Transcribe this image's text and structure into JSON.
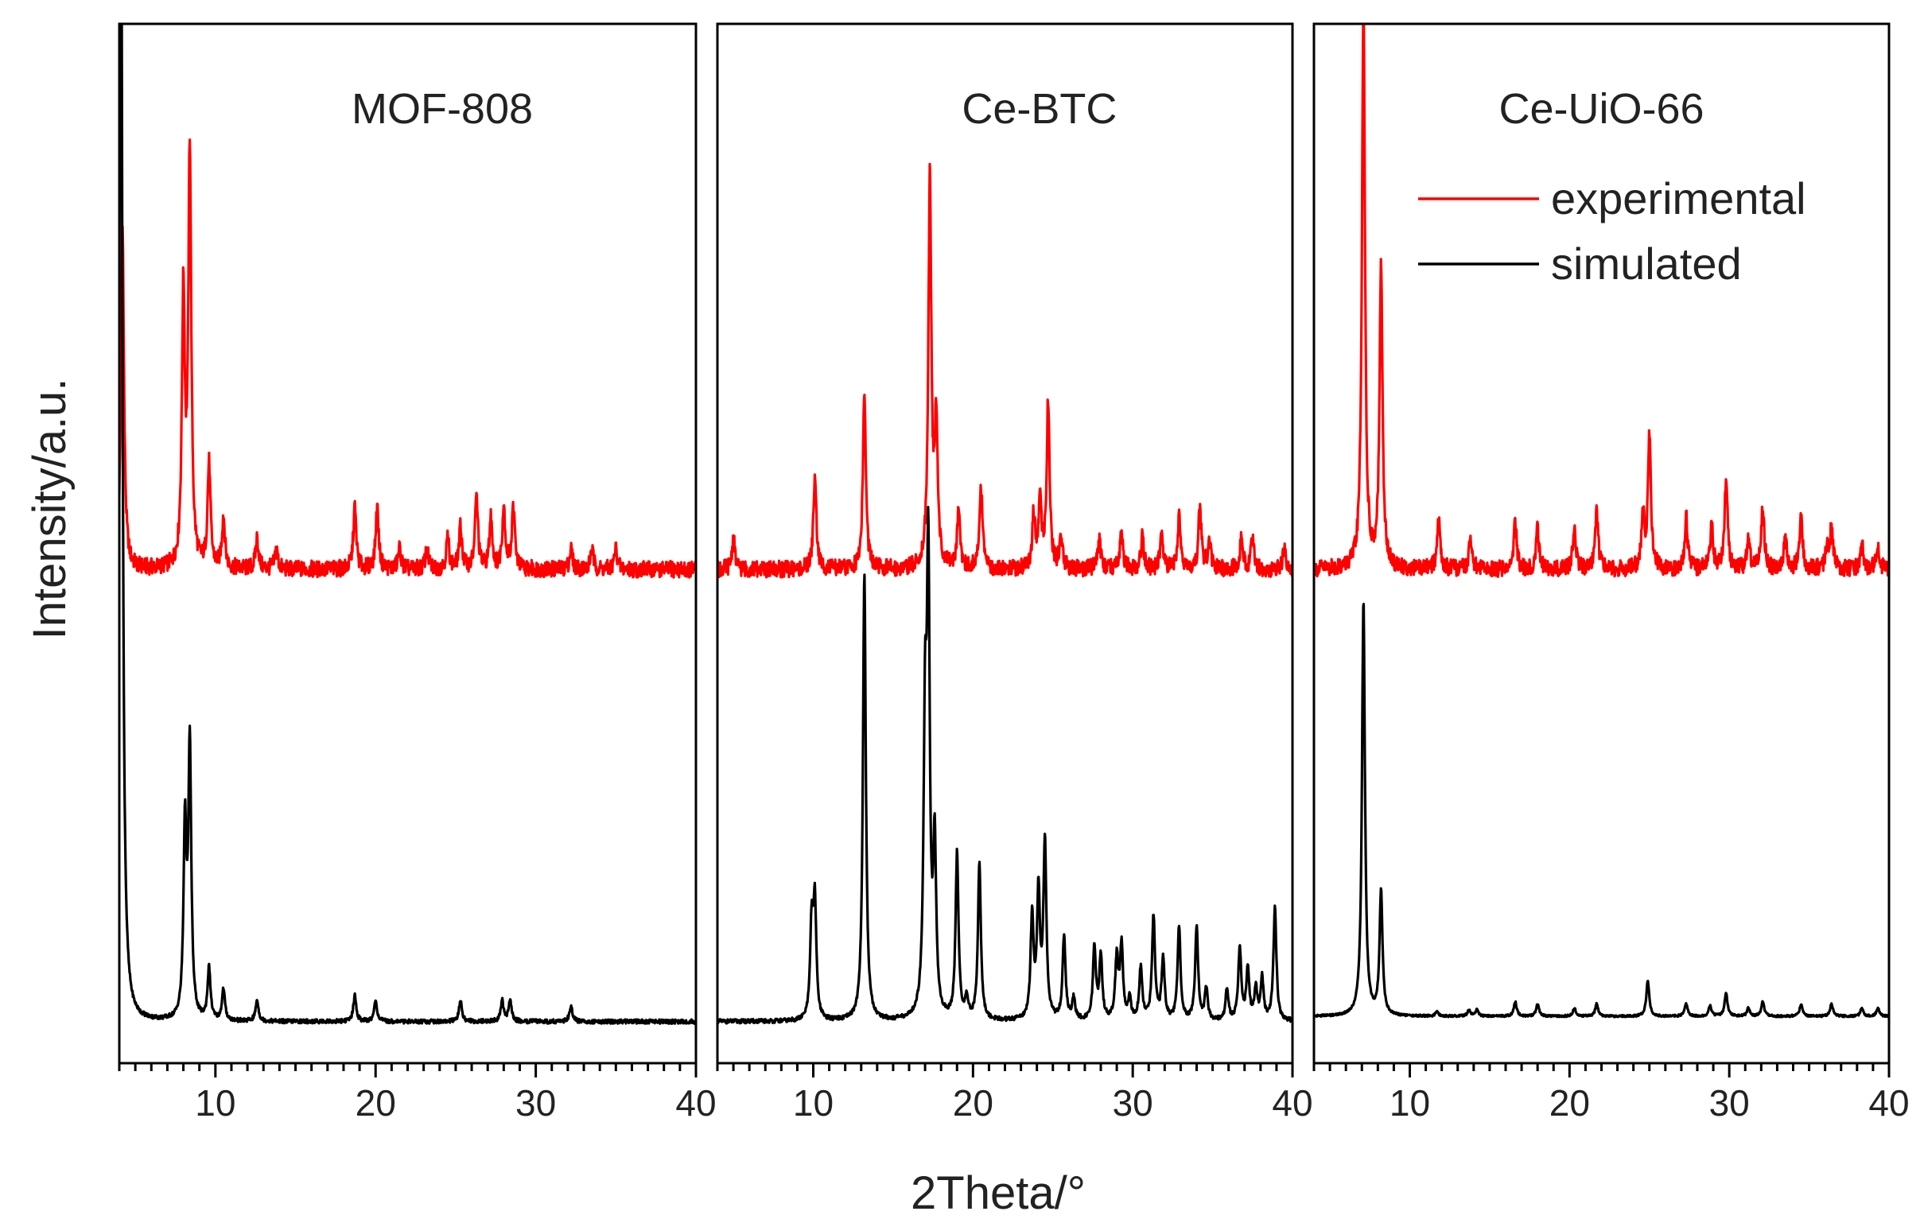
{
  "figure": {
    "xlabel": "2Theta/°",
    "ylabel": "Intensity/a.u.",
    "legend": {
      "placement": "top-right of third panel",
      "entries": [
        {
          "label": "experimental",
          "color": "#ff0000"
        },
        {
          "label": "simulated",
          "color": "#000000"
        }
      ]
    }
  },
  "chart_data": [
    {
      "type": "line",
      "title": "MOF-808",
      "xlim": [
        4,
        40
      ],
      "ylim": [
        0,
        1
      ],
      "xticks": [
        10,
        20,
        30,
        40
      ],
      "grid": false,
      "series": [
        {
          "name": "experimental",
          "color": "#ff0000",
          "baseline": 0.475,
          "peaks": [
            [
              4.2,
              0.33
            ],
            [
              8.0,
              0.26
            ],
            [
              8.4,
              0.4
            ],
            [
              9.6,
              0.1
            ],
            [
              10.5,
              0.05
            ],
            [
              12.6,
              0.03
            ],
            [
              13.8,
              0.02
            ],
            [
              18.7,
              0.06
            ],
            [
              20.1,
              0.06
            ],
            [
              21.5,
              0.02
            ],
            [
              23.2,
              0.02
            ],
            [
              24.5,
              0.03
            ],
            [
              25.3,
              0.04
            ],
            [
              26.3,
              0.07
            ],
            [
              27.2,
              0.05
            ],
            [
              28.0,
              0.06
            ],
            [
              28.6,
              0.06
            ],
            [
              32.2,
              0.02
            ],
            [
              33.5,
              0.02
            ],
            [
              35.0,
              0.02
            ]
          ],
          "noise": 0.008
        },
        {
          "name": "simulated",
          "color": "#000000",
          "baseline": 0.04,
          "peaks": [
            [
              4.1,
              1.2
            ],
            [
              8.1,
              0.18
            ],
            [
              8.4,
              0.26
            ],
            [
              9.6,
              0.05
            ],
            [
              10.5,
              0.03
            ],
            [
              12.6,
              0.02
            ],
            [
              18.7,
              0.025
            ],
            [
              20.0,
              0.02
            ],
            [
              25.3,
              0.02
            ],
            [
              27.9,
              0.02
            ],
            [
              28.4,
              0.02
            ],
            [
              32.2,
              0.015
            ]
          ],
          "noise": 0.002
        }
      ]
    },
    {
      "type": "line",
      "title": "Ce-BTC",
      "xlim": [
        4,
        40
      ],
      "ylim": [
        0,
        1
      ],
      "xticks": [
        10,
        20,
        30,
        40
      ],
      "grid": false,
      "series": [
        {
          "name": "experimental",
          "color": "#ff0000",
          "baseline": 0.475,
          "peaks": [
            [
              5.0,
              0.03
            ],
            [
              10.1,
              0.09
            ],
            [
              13.2,
              0.17
            ],
            [
              17.3,
              0.38
            ],
            [
              17.7,
              0.14
            ],
            [
              19.1,
              0.06
            ],
            [
              20.5,
              0.08
            ],
            [
              23.8,
              0.05
            ],
            [
              24.2,
              0.06
            ],
            [
              24.7,
              0.16
            ],
            [
              25.5,
              0.03
            ],
            [
              27.9,
              0.03
            ],
            [
              29.3,
              0.035
            ],
            [
              30.6,
              0.03
            ],
            [
              31.8,
              0.03
            ],
            [
              32.9,
              0.05
            ],
            [
              34.2,
              0.06
            ],
            [
              34.8,
              0.03
            ],
            [
              36.8,
              0.03
            ],
            [
              37.5,
              0.03
            ],
            [
              39.5,
              0.02
            ]
          ],
          "noise": 0.008
        },
        {
          "name": "simulated",
          "color": "#000000",
          "baseline": 0.04,
          "peaks": [
            [
              9.9,
              0.09
            ],
            [
              10.1,
              0.11
            ],
            [
              13.2,
              0.43
            ],
            [
              17.0,
              0.26
            ],
            [
              17.2,
              0.42
            ],
            [
              17.6,
              0.16
            ],
            [
              19.0,
              0.16
            ],
            [
              19.6,
              0.02
            ],
            [
              20.4,
              0.15
            ],
            [
              23.7,
              0.1
            ],
            [
              24.1,
              0.12
            ],
            [
              24.5,
              0.17
            ],
            [
              25.7,
              0.08
            ],
            [
              26.3,
              0.02
            ],
            [
              27.6,
              0.07
            ],
            [
              28.0,
              0.06
            ],
            [
              29.0,
              0.06
            ],
            [
              29.3,
              0.07
            ],
            [
              29.8,
              0.02
            ],
            [
              30.5,
              0.05
            ],
            [
              31.3,
              0.1
            ],
            [
              31.9,
              0.06
            ],
            [
              32.9,
              0.09
            ],
            [
              34.0,
              0.09
            ],
            [
              34.6,
              0.03
            ],
            [
              35.9,
              0.03
            ],
            [
              36.7,
              0.07
            ],
            [
              37.2,
              0.05
            ],
            [
              37.7,
              0.03
            ],
            [
              38.1,
              0.04
            ],
            [
              38.9,
              0.11
            ]
          ],
          "noise": 0.002
        }
      ]
    },
    {
      "type": "line",
      "title": "Ce-UiO-66",
      "xlim": [
        4,
        40
      ],
      "ylim": [
        0,
        1
      ],
      "xticks": [
        10,
        20,
        30,
        40
      ],
      "grid": false,
      "series": [
        {
          "name": "experimental",
          "color": "#ff0000",
          "baseline": 0.475,
          "peaks": [
            [
              7.1,
              0.55
            ],
            [
              8.2,
              0.29
            ],
            [
              11.8,
              0.05
            ],
            [
              13.8,
              0.03
            ],
            [
              16.6,
              0.045
            ],
            [
              18.0,
              0.04
            ],
            [
              20.3,
              0.04
            ],
            [
              21.7,
              0.055
            ],
            [
              24.6,
              0.05
            ],
            [
              25.0,
              0.13
            ],
            [
              27.3,
              0.05
            ],
            [
              28.9,
              0.04
            ],
            [
              29.8,
              0.09
            ],
            [
              31.2,
              0.03
            ],
            [
              32.1,
              0.06
            ],
            [
              33.5,
              0.03
            ],
            [
              34.5,
              0.05
            ],
            [
              36.1,
              0.02
            ],
            [
              36.4,
              0.04
            ],
            [
              38.3,
              0.025
            ],
            [
              39.3,
              0.025
            ]
          ],
          "noise": 0.008
        },
        {
          "name": "simulated",
          "color": "#000000",
          "baseline": 0.045,
          "peaks": [
            [
              7.1,
              0.4
            ],
            [
              8.2,
              0.12
            ],
            [
              11.7,
              0.004
            ],
            [
              13.7,
              0.006
            ],
            [
              14.2,
              0.006
            ],
            [
              16.6,
              0.014
            ],
            [
              18.0,
              0.012
            ],
            [
              20.3,
              0.008
            ],
            [
              21.7,
              0.012
            ],
            [
              24.9,
              0.034
            ],
            [
              27.3,
              0.012
            ],
            [
              28.8,
              0.01
            ],
            [
              29.8,
              0.022
            ],
            [
              31.2,
              0.008
            ],
            [
              32.1,
              0.014
            ],
            [
              34.5,
              0.012
            ],
            [
              36.4,
              0.012
            ],
            [
              38.3,
              0.008
            ],
            [
              39.3,
              0.008
            ]
          ],
          "noise": 0.001
        }
      ]
    }
  ]
}
